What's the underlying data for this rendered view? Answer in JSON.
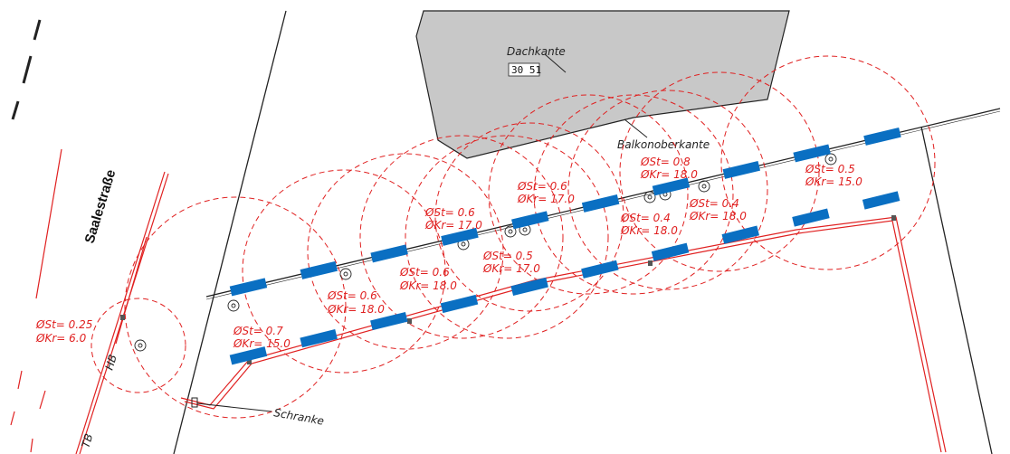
{
  "labels": {
    "street": "Saalestraße",
    "roof_edge": "Dachkante",
    "roof_elevation": "30 51",
    "balcony_edge": "Balkonoberkante",
    "barrier": "Schranke",
    "hb": "HB",
    "tb": "TB"
  },
  "trees": [
    {
      "st": "ØSt= 0.25",
      "kr": "ØKr= 6.0"
    },
    {
      "st": "ØSt= 0.7",
      "kr": "ØKr= 15.0"
    },
    {
      "st": "ØSt= 0.6",
      "kr": "ØKr= 18.0"
    },
    {
      "st": "ØSt= 0.6",
      "kr": "ØKr= 18.0"
    },
    {
      "st": "ØSt= 0.6",
      "kr": "ØKr= 17.0"
    },
    {
      "st": "ØSt= 0.5",
      "kr": "ØKr= 17.0"
    },
    {
      "st": "ØSt= 0.6",
      "kr": "ØKr= 17.0"
    },
    {
      "st": "ØSt= 0.4",
      "kr": "ØKr= 18.0"
    },
    {
      "st": "ØSt= 0.8",
      "kr": "ØKr= 18.0"
    },
    {
      "st": "ØSt= 0.4",
      "kr": "ØKr= 18.0"
    },
    {
      "st": "ØSt= 0.5",
      "kr": "ØKr= 15.0"
    }
  ],
  "colors": {
    "tree": "#e02020",
    "corridor": "#0a6fc2",
    "building": "#c8c8c8",
    "line": "#222222"
  },
  "icons": [
    "tree-symbol-icon",
    "barrier-icon"
  ]
}
